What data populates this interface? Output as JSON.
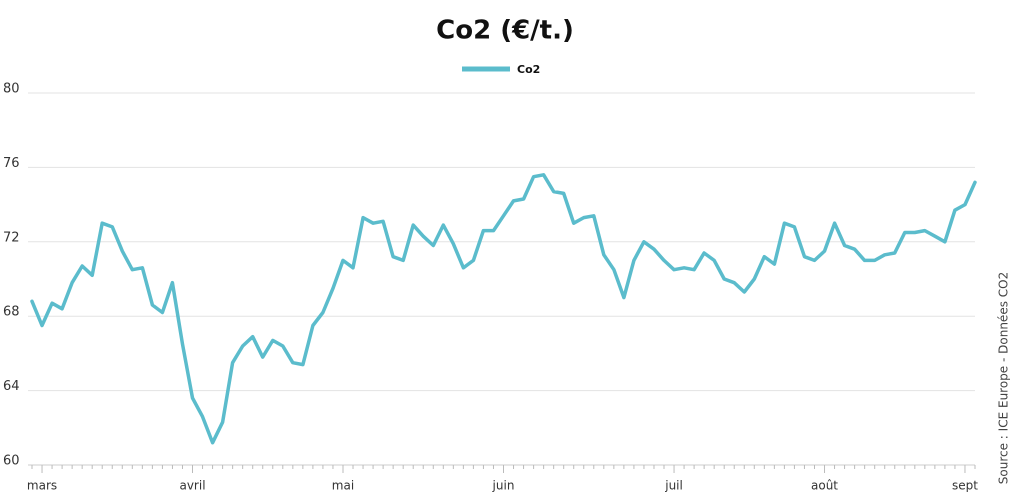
{
  "chart_data": {
    "type": "line",
    "title": "Co2 (€/t.)",
    "source": "Source : ICE Europe - Données CO2",
    "categories": [
      null,
      "mars",
      null,
      null,
      null,
      null,
      null,
      null,
      null,
      null,
      null,
      null,
      null,
      null,
      null,
      null,
      "avril",
      null,
      null,
      null,
      null,
      null,
      null,
      null,
      null,
      null,
      null,
      null,
      null,
      null,
      null,
      "mai",
      null,
      null,
      null,
      null,
      null,
      null,
      null,
      null,
      null,
      null,
      null,
      null,
      null,
      null,
      null,
      "juin",
      null,
      null,
      null,
      null,
      null,
      null,
      null,
      null,
      null,
      null,
      null,
      null,
      null,
      null,
      null,
      null,
      "juil",
      null,
      null,
      null,
      null,
      null,
      null,
      null,
      null,
      null,
      null,
      null,
      null,
      null,
      null,
      "août",
      null,
      null,
      null,
      null,
      null,
      null,
      null,
      null,
      null,
      null,
      null,
      null,
      null,
      "sept",
      null
    ],
    "series": [
      {
        "name": "Co2",
        "color": "#5bbccc",
        "values": [
          68.8,
          67.5,
          68.7,
          68.4,
          69.8,
          70.7,
          70.2,
          73.0,
          72.8,
          71.5,
          70.5,
          70.6,
          68.6,
          68.2,
          69.8,
          66.5,
          63.6,
          62.6,
          61.2,
          62.3,
          65.5,
          66.4,
          66.9,
          65.8,
          66.7,
          66.4,
          65.5,
          65.4,
          67.5,
          68.2,
          69.5,
          71.0,
          70.6,
          73.3,
          73.0,
          73.1,
          71.2,
          71.0,
          72.9,
          72.3,
          71.8,
          72.9,
          71.9,
          70.6,
          71.0,
          72.6,
          72.6,
          73.4,
          74.2,
          74.3,
          75.5,
          75.6,
          74.7,
          74.6,
          73.0,
          73.3,
          73.4,
          71.3,
          70.5,
          69.0,
          71.0,
          72.0,
          71.6,
          71.0,
          70.5,
          70.6,
          70.5,
          71.4,
          71.0,
          70.0,
          69.8,
          69.3,
          70.0,
          71.2,
          70.8,
          73.0,
          72.8,
          71.2,
          71.0,
          71.5,
          73.0,
          71.8,
          71.6,
          71.0,
          71.0,
          71.3,
          71.4,
          72.5,
          72.5,
          72.6,
          72.3,
          72.0,
          73.7,
          74.0,
          75.2
        ]
      }
    ],
    "ylim": [
      60,
      80
    ],
    "yticks": [
      60,
      64,
      68,
      72,
      76,
      80
    ],
    "grid": true
  }
}
